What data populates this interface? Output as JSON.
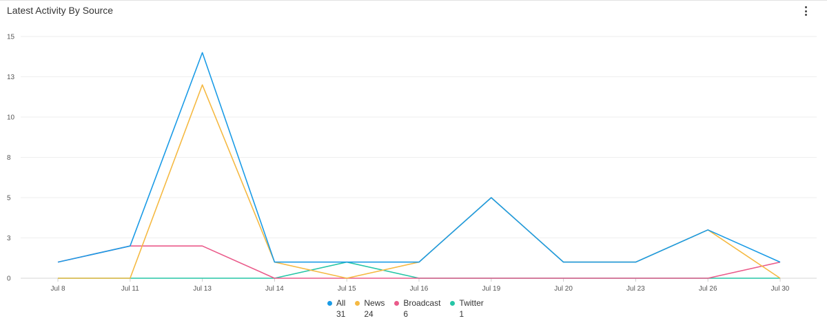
{
  "header": {
    "title": "Latest Activity By Source",
    "menu_icon": "more-vertical-icon"
  },
  "chart_data": {
    "type": "line",
    "title": "Latest Activity By Source",
    "xlabel": "",
    "ylabel": "",
    "categories": [
      "Jul 8",
      "Jul 11",
      "Jul 13",
      "Jul 14",
      "Jul 15",
      "Jul 16",
      "Jul 19",
      "Jul 20",
      "Jul 23",
      "Jul 26",
      "Jul 30"
    ],
    "yticks": [
      "0",
      "3",
      "5",
      "8",
      "10",
      "13",
      "15"
    ],
    "ylim": [
      0,
      15
    ],
    "grid": true,
    "legend_position": "bottom",
    "series": [
      {
        "name": "All",
        "color": "#1a9be6",
        "count": "31",
        "values": [
          1,
          2,
          14,
          1,
          1,
          1,
          5,
          1,
          1,
          3,
          1
        ]
      },
      {
        "name": "News",
        "color": "#f5b942",
        "count": "24",
        "values": [
          0,
          0,
          12,
          1,
          0,
          1,
          5,
          1,
          1,
          3,
          0
        ]
      },
      {
        "name": "Broadcast",
        "color": "#ea5a8a",
        "count": "6",
        "values": [
          1,
          2,
          2,
          0,
          0,
          0,
          0,
          0,
          0,
          0,
          1
        ]
      },
      {
        "name": "Twitter",
        "color": "#25c5a6",
        "count": "1",
        "values": [
          0,
          0,
          0,
          0,
          1,
          0,
          0,
          0,
          0,
          0,
          0
        ]
      }
    ]
  }
}
